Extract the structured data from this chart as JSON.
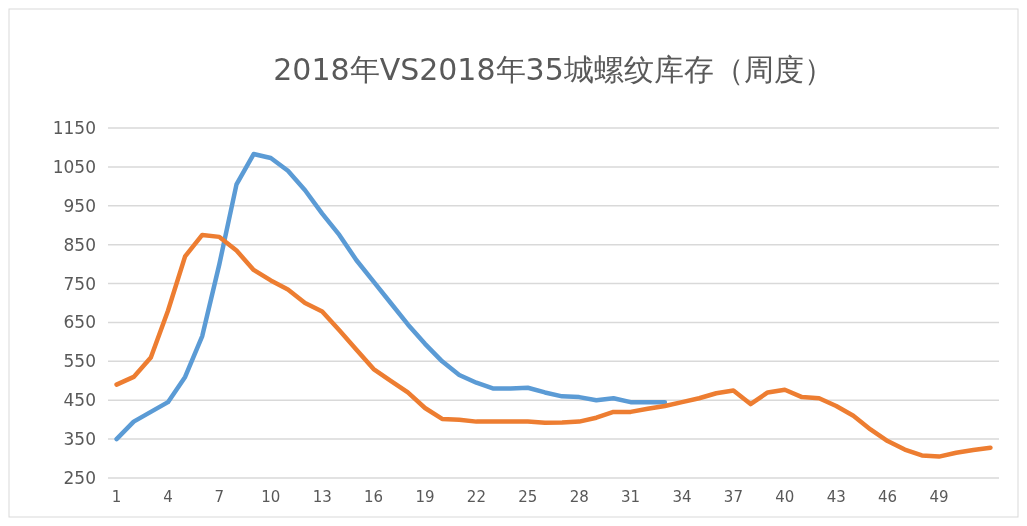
{
  "chart_data": {
    "type": "line",
    "title": "2018年VS2018年35城螺纹库存（周度）",
    "x": [
      1,
      2,
      3,
      4,
      5,
      6,
      7,
      8,
      9,
      10,
      11,
      12,
      13,
      14,
      15,
      16,
      17,
      18,
      19,
      20,
      21,
      22,
      23,
      24,
      25,
      26,
      27,
      28,
      29,
      30,
      31,
      32,
      33,
      34,
      35,
      36,
      37,
      38,
      39,
      40,
      41,
      42,
      43,
      44,
      45,
      46,
      47,
      48,
      49,
      50,
      51,
      52
    ],
    "xlim": [
      0.5,
      52.5
    ],
    "xticks": [
      1,
      4,
      7,
      10,
      13,
      16,
      19,
      22,
      25,
      28,
      31,
      34,
      37,
      40,
      43,
      46,
      49
    ],
    "ylim": [
      250,
      1150
    ],
    "yticks": [
      250,
      350,
      450,
      550,
      650,
      750,
      850,
      950,
      1050,
      1150
    ],
    "grid": "y",
    "line_style": "solid",
    "marker": "none",
    "series": [
      {
        "color": "#5b9bd5",
        "values": [
          350,
          395,
          420,
          445,
          510,
          615,
          800,
          1005,
          1083,
          1073,
          1040,
          990,
          930,
          875,
          810,
          755,
          700,
          645,
          595,
          550,
          515,
          495,
          480,
          480,
          482,
          470,
          460,
          458,
          450,
          455,
          445,
          445,
          445,
          null,
          null,
          null,
          null,
          null,
          null,
          null,
          null,
          null,
          null,
          null,
          null,
          null,
          null,
          null,
          null,
          null,
          null,
          null
        ]
      },
      {
        "color": "#ed7d31",
        "values": [
          490,
          510,
          560,
          680,
          820,
          875,
          870,
          835,
          785,
          758,
          735,
          700,
          678,
          630,
          580,
          530,
          500,
          470,
          430,
          402,
          400,
          395,
          395,
          395,
          395,
          392,
          393,
          395,
          405,
          420,
          420,
          428,
          435,
          445,
          455,
          468,
          475,
          440,
          470,
          477,
          458,
          455,
          435,
          410,
          375,
          345,
          323,
          308,
          305,
          315,
          322,
          328
        ]
      }
    ]
  }
}
